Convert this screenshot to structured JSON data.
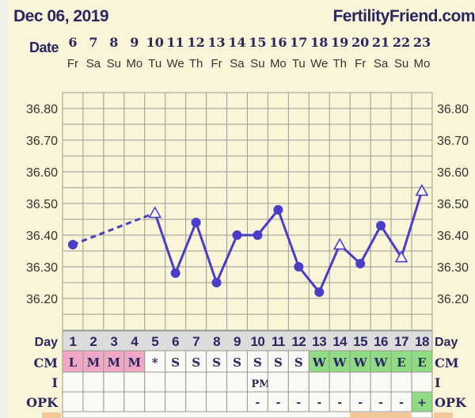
{
  "header": {
    "date": "Dec 06, 2019",
    "site": "FertilityFriend.com"
  },
  "colors": {
    "line": "#4a3dc6",
    "grid": "#9a9a90",
    "bg": "#faf5d8",
    "pink": "#f0a8c4",
    "green": "#8fdc84",
    "dayrow": "#dcdcdc",
    "orange": "#f5c796"
  },
  "chart_data": {
    "type": "line",
    "title": "Dec 06, 2019",
    "xlabel": "Date",
    "ylabel": "",
    "ylim": [
      36.1,
      36.85
    ],
    "yticks": [
      "36.80",
      "36.70",
      "36.60",
      "36.50",
      "36.40",
      "36.30",
      "36.20"
    ],
    "grid": true,
    "dates": [
      "6",
      "7",
      "8",
      "9",
      "10",
      "11",
      "12",
      "13",
      "14",
      "15",
      "16",
      "17",
      "18",
      "19",
      "20",
      "21",
      "22",
      "23"
    ],
    "weekdays": [
      "Fr",
      "Sa",
      "Su",
      "Mo",
      "Tu",
      "We",
      "Th",
      "Fr",
      "Sa",
      "Su",
      "Mo",
      "Tu",
      "We",
      "Th",
      "Fr",
      "Sa",
      "Su",
      "Mo"
    ],
    "cycle_days": [
      "1",
      "2",
      "3",
      "4",
      "5",
      "6",
      "7",
      "8",
      "9",
      "10",
      "11",
      "12",
      "13",
      "14",
      "15",
      "16",
      "17",
      "18"
    ],
    "temps": [
      36.37,
      null,
      null,
      null,
      36.47,
      36.28,
      36.44,
      36.25,
      36.4,
      36.4,
      36.48,
      36.3,
      36.22,
      36.37,
      36.31,
      36.43,
      36.33,
      36.54
    ],
    "markers": [
      "dot",
      null,
      null,
      null,
      "triangle",
      "dot",
      "dot",
      "dot",
      "dot",
      "dot",
      "dot",
      "dot",
      "dot",
      "triangle",
      "dot",
      "dot",
      "triangle",
      "triangle"
    ],
    "dashed_segments": [
      [
        1,
        5
      ]
    ]
  },
  "table": {
    "labels": {
      "day": "Day",
      "cm": "CM",
      "i": "I",
      "opk": "OPK",
      "date": "Date"
    },
    "cm": [
      "L",
      "M",
      "M",
      "M",
      "*",
      "S",
      "S",
      "S",
      "S",
      "S",
      "S",
      "S",
      "W",
      "W",
      "W",
      "W",
      "E",
      "E"
    ],
    "cm_colors": [
      "pink",
      "pink",
      "pink",
      "pink",
      "",
      "",
      "",
      "",
      "",
      "",
      "",
      "",
      "green",
      "green",
      "green",
      "green",
      "green",
      "green"
    ],
    "i": [
      "",
      "",
      "",
      "",
      "",
      "",
      "",
      "",
      "",
      "PM",
      "",
      "",
      "",
      "",
      "",
      "",
      "",
      ""
    ],
    "opk": [
      "",
      "",
      "",
      "",
      "",
      "",
      "",
      "",
      "",
      "-",
      "-",
      "-",
      "-",
      "-",
      "-",
      "-",
      "-",
      "+"
    ],
    "opk_colors": [
      "",
      "",
      "",
      "",
      "",
      "",
      "",
      "",
      "",
      "",
      "",
      "",
      "",
      "",
      "",
      "",
      "",
      "green"
    ]
  }
}
